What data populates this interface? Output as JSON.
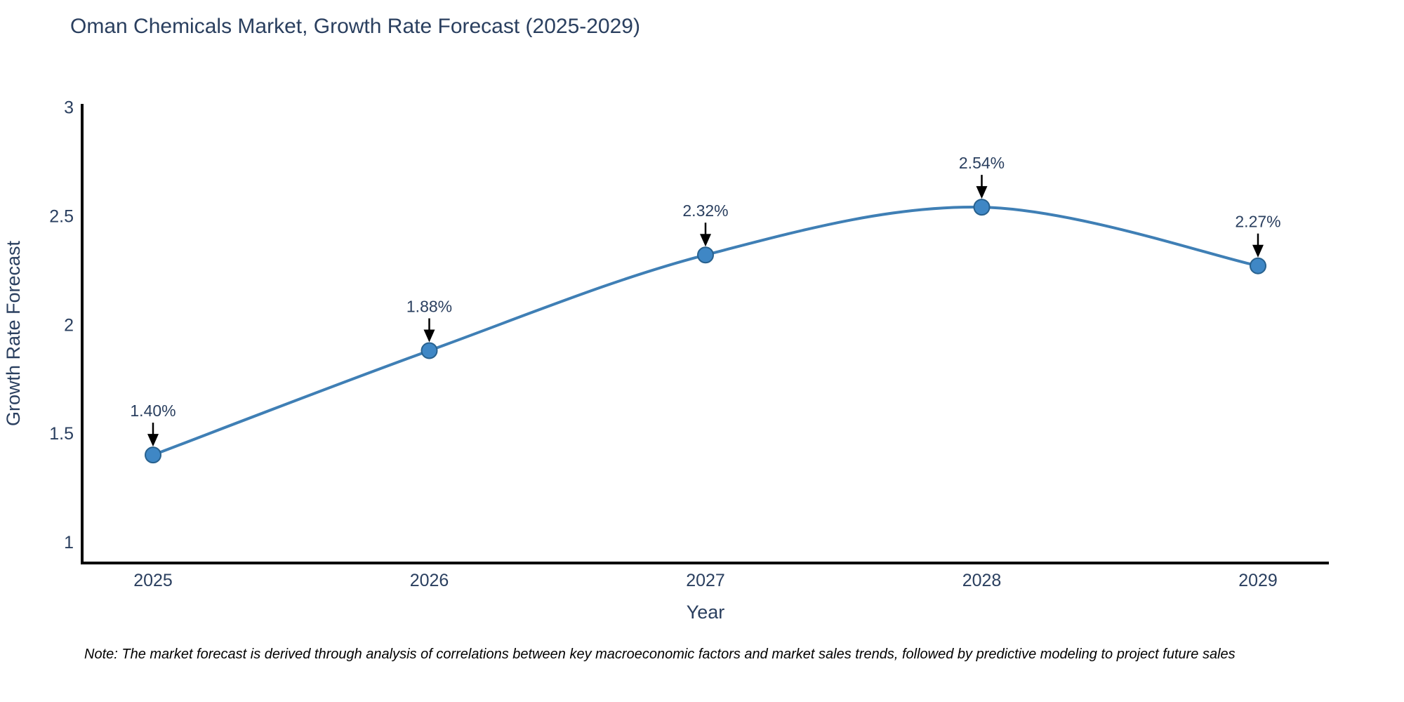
{
  "chart_data": {
    "type": "line",
    "line_shape": "spline",
    "title": "Oman Chemicals Market, Growth Rate Forecast (2025-2029)",
    "xlabel": "Year",
    "ylabel": "Growth Rate Forecast",
    "categories": [
      "2025",
      "2026",
      "2027",
      "2028",
      "2029"
    ],
    "values": [
      1.4,
      1.88,
      2.32,
      2.54,
      2.27
    ],
    "point_labels": [
      "1.40%",
      "1.88%",
      "2.32%",
      "2.54%",
      "2.27%"
    ],
    "ytick_labels": [
      "1",
      "1.5",
      "2",
      "2.5",
      "3"
    ],
    "ytick_values": [
      1,
      1.5,
      2,
      2.5,
      3
    ],
    "ylim": [
      0.903,
      3.015
    ],
    "grid": false,
    "legend": "none",
    "annotations": "black down-arrows from each value label to its marker",
    "colors": {
      "line": "#3f7fb5",
      "marker_fill": "#3f87c5",
      "marker_edge": "#28618e",
      "text": "#2a3f5f",
      "axis": "#000000",
      "arrow": "#000000",
      "background": "#ffffff"
    }
  },
  "footnote": {
    "text": "Note: The market forecast is derived through analysis of correlations between key macroeconomic factors and market sales trends, followed by predictive modeling to project future sales"
  }
}
